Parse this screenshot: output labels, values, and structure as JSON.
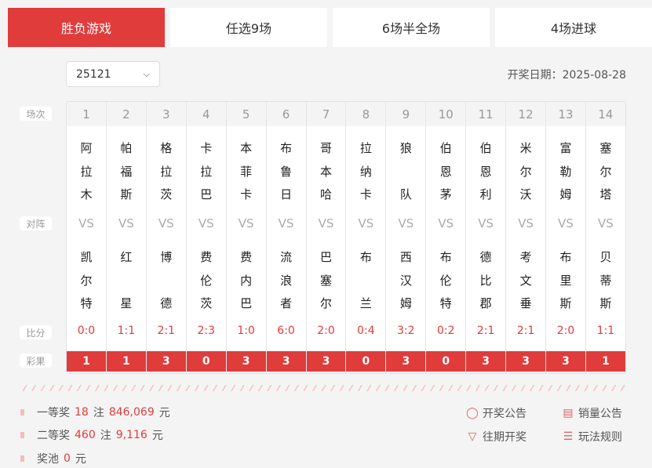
{
  "tabs": [
    "胜负游戏",
    "任选9场",
    "6场半全场",
    "4场进球"
  ],
  "issue": "25121",
  "draw_date_label": "开奖日期：",
  "draw_date": "2025-08-28",
  "row_labels": {
    "match_no": "场次",
    "matchup": "对阵",
    "score": "比分",
    "result": "彩果"
  },
  "vs": "VS",
  "matches": [
    {
      "no": "1",
      "home": [
        "阿",
        "拉",
        "木"
      ],
      "away": [
        "凯",
        "尔",
        "特"
      ],
      "score": "0:0",
      "result": "1"
    },
    {
      "no": "2",
      "home": [
        "帕",
        "福",
        "斯"
      ],
      "away": [
        "红",
        "",
        "星"
      ],
      "score": "1:1",
      "result": "1"
    },
    {
      "no": "3",
      "home": [
        "格",
        "拉",
        "茨"
      ],
      "away": [
        "博",
        "",
        "德"
      ],
      "score": "2:1",
      "result": "3"
    },
    {
      "no": "4",
      "home": [
        "卡",
        "拉",
        "巴"
      ],
      "away": [
        "费",
        "伦",
        "茨"
      ],
      "score": "2:3",
      "result": "0"
    },
    {
      "no": "5",
      "home": [
        "本",
        "菲",
        "卡"
      ],
      "away": [
        "费",
        "内",
        "巴"
      ],
      "score": "1:0",
      "result": "3"
    },
    {
      "no": "6",
      "home": [
        "布",
        "鲁",
        "日"
      ],
      "away": [
        "流",
        "浪",
        "者"
      ],
      "score": "6:0",
      "result": "3"
    },
    {
      "no": "7",
      "home": [
        "哥",
        "本",
        "哈"
      ],
      "away": [
        "巴",
        "塞",
        "尔"
      ],
      "score": "2:0",
      "result": "3"
    },
    {
      "no": "8",
      "home": [
        "拉",
        "纳",
        "卡"
      ],
      "away": [
        "布",
        "",
        "兰"
      ],
      "score": "0:4",
      "result": "0"
    },
    {
      "no": "9",
      "home": [
        "狼",
        "",
        "队"
      ],
      "away": [
        "西",
        "汉",
        "姆"
      ],
      "score": "3:2",
      "result": "3"
    },
    {
      "no": "10",
      "home": [
        "伯",
        "恩",
        "茅"
      ],
      "away": [
        "布",
        "伦",
        "特"
      ],
      "score": "0:2",
      "result": "0"
    },
    {
      "no": "11",
      "home": [
        "伯",
        "恩",
        "利"
      ],
      "away": [
        "德",
        "比",
        "郡"
      ],
      "score": "2:1",
      "result": "3"
    },
    {
      "no": "12",
      "home": [
        "米",
        "尔",
        "沃"
      ],
      "away": [
        "考",
        "文",
        "垂"
      ],
      "score": "2:1",
      "result": "3"
    },
    {
      "no": "13",
      "home": [
        "富",
        "勒",
        "姆"
      ],
      "away": [
        "布",
        "里",
        "斯"
      ],
      "score": "2:0",
      "result": "3"
    },
    {
      "no": "14",
      "home": [
        "塞",
        "尔",
        "塔"
      ],
      "away": [
        "贝",
        "蒂",
        "斯"
      ],
      "score": "1:1",
      "result": "1"
    }
  ],
  "prizes": {
    "first": {
      "label": "一等奖",
      "count": "18",
      "unit": "注",
      "amount": "846,069",
      "currency": "元"
    },
    "second": {
      "label": "二等奖",
      "count": "460",
      "unit": "注",
      "amount": "9,116",
      "currency": "元"
    },
    "pool": {
      "label": "奖池",
      "amount": "0",
      "currency": "元"
    }
  },
  "links": {
    "announcement": "开奖公告",
    "sales": "销量公告",
    "history": "往期开奖",
    "rules": "玩法规则"
  },
  "colors": {
    "accent": "#e03c3c"
  }
}
